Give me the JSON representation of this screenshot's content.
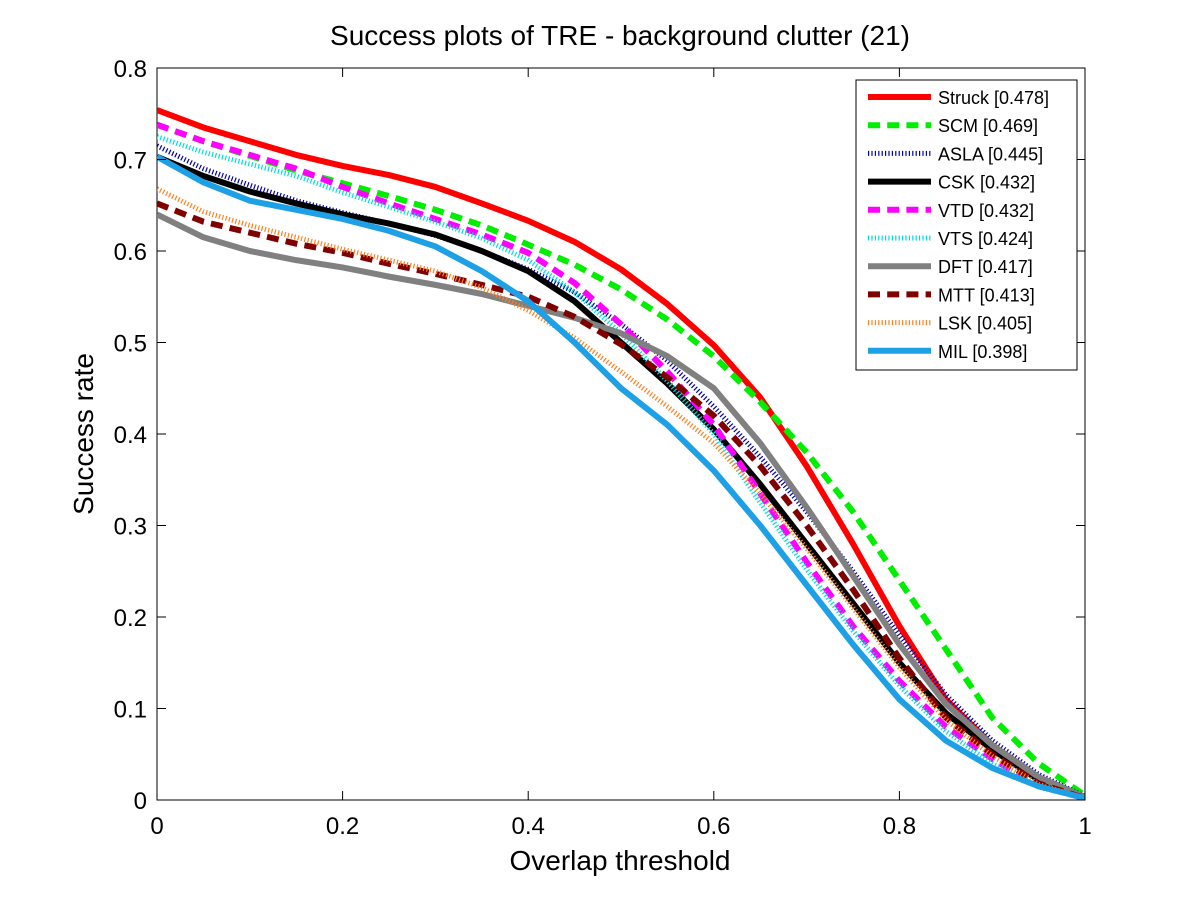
{
  "chart_data": {
    "type": "line",
    "title": "Success plots of TRE - background clutter (21)",
    "xlabel": "Overlap threshold",
    "ylabel": "Success rate",
    "xlim": [
      0,
      1
    ],
    "ylim": [
      0,
      0.8
    ],
    "xticks": [
      "0",
      "0.2",
      "0.4",
      "0.6",
      "0.8",
      "1"
    ],
    "yticks": [
      "0",
      "0.1",
      "0.2",
      "0.3",
      "0.4",
      "0.5",
      "0.6",
      "0.7",
      "0.8"
    ],
    "grid": false,
    "legend_position": "top-right",
    "x": [
      0,
      0.05,
      0.1,
      0.15,
      0.2,
      0.25,
      0.3,
      0.35,
      0.4,
      0.45,
      0.5,
      0.55,
      0.6,
      0.65,
      0.7,
      0.75,
      0.8,
      0.85,
      0.9,
      0.95,
      1
    ],
    "series": [
      {
        "name": "Struck [0.478]",
        "color": "#ff0000",
        "style": "solid",
        "width": 6,
        "values": [
          0.754,
          0.735,
          0.72,
          0.705,
          0.693,
          0.683,
          0.67,
          0.652,
          0.633,
          0.61,
          0.58,
          0.542,
          0.497,
          0.44,
          0.365,
          0.28,
          0.19,
          0.11,
          0.06,
          0.025,
          0.003
        ]
      },
      {
        "name": "SCM [0.469]",
        "color": "#00ee00",
        "style": "dashed",
        "width": 6,
        "values": [
          0.738,
          0.72,
          0.704,
          0.688,
          0.674,
          0.66,
          0.645,
          0.628,
          0.607,
          0.585,
          0.558,
          0.525,
          0.485,
          0.435,
          0.38,
          0.315,
          0.24,
          0.165,
          0.09,
          0.04,
          0.005
        ]
      },
      {
        "name": "ASLA [0.445]",
        "color": "#0000aa",
        "style": "dotted",
        "width": 4,
        "values": [
          0.715,
          0.69,
          0.672,
          0.655,
          0.642,
          0.63,
          0.617,
          0.6,
          0.58,
          0.555,
          0.52,
          0.48,
          0.43,
          0.375,
          0.315,
          0.25,
          0.18,
          0.115,
          0.065,
          0.028,
          0.004
        ]
      },
      {
        "name": "CSK [0.432]",
        "color": "#000000",
        "style": "solid",
        "width": 6,
        "values": [
          0.703,
          0.682,
          0.665,
          0.652,
          0.64,
          0.63,
          0.618,
          0.6,
          0.578,
          0.545,
          0.5,
          0.455,
          0.405,
          0.345,
          0.28,
          0.215,
          0.15,
          0.095,
          0.055,
          0.022,
          0.003
        ]
      },
      {
        "name": "VTD [0.432]",
        "color": "#ff00ff",
        "style": "dashed",
        "width": 6,
        "values": [
          0.738,
          0.72,
          0.705,
          0.69,
          0.67,
          0.652,
          0.635,
          0.618,
          0.598,
          0.565,
          0.52,
          0.468,
          0.41,
          0.335,
          0.26,
          0.19,
          0.13,
          0.08,
          0.045,
          0.015,
          0.002
        ]
      },
      {
        "name": "VTS [0.424]",
        "color": "#00dddd",
        "style": "dotted",
        "width": 4,
        "values": [
          0.725,
          0.708,
          0.695,
          0.682,
          0.664,
          0.648,
          0.632,
          0.614,
          0.59,
          0.555,
          0.51,
          0.458,
          0.4,
          0.325,
          0.252,
          0.185,
          0.125,
          0.075,
          0.04,
          0.014,
          0.002
        ]
      },
      {
        "name": "DFT [0.417]",
        "color": "#808080",
        "style": "solid",
        "width": 6,
        "values": [
          0.64,
          0.615,
          0.6,
          0.59,
          0.582,
          0.572,
          0.563,
          0.553,
          0.54,
          0.527,
          0.51,
          0.485,
          0.45,
          0.39,
          0.32,
          0.245,
          0.17,
          0.105,
          0.06,
          0.025,
          0.003
        ]
      },
      {
        "name": "MTT [0.413]",
        "color": "#800000",
        "style": "dashed",
        "width": 6,
        "values": [
          0.652,
          0.632,
          0.62,
          0.608,
          0.598,
          0.586,
          0.575,
          0.563,
          0.55,
          0.528,
          0.498,
          0.462,
          0.42,
          0.365,
          0.3,
          0.23,
          0.155,
          0.09,
          0.05,
          0.018,
          0.002
        ]
      },
      {
        "name": "LSK [0.405]",
        "color": "#ff8020",
        "style": "dotted",
        "width": 4,
        "values": [
          0.668,
          0.643,
          0.628,
          0.615,
          0.602,
          0.59,
          0.578,
          0.56,
          0.535,
          0.505,
          0.468,
          0.43,
          0.39,
          0.335,
          0.275,
          0.21,
          0.145,
          0.088,
          0.048,
          0.017,
          0.002
        ]
      },
      {
        "name": "MIL [0.398]",
        "color": "#1ea0e6",
        "style": "solid",
        "width": 6,
        "values": [
          0.703,
          0.675,
          0.655,
          0.645,
          0.635,
          0.622,
          0.605,
          0.578,
          0.545,
          0.5,
          0.45,
          0.41,
          0.36,
          0.3,
          0.235,
          0.17,
          0.11,
          0.065,
          0.035,
          0.015,
          0.002
        ]
      }
    ]
  }
}
